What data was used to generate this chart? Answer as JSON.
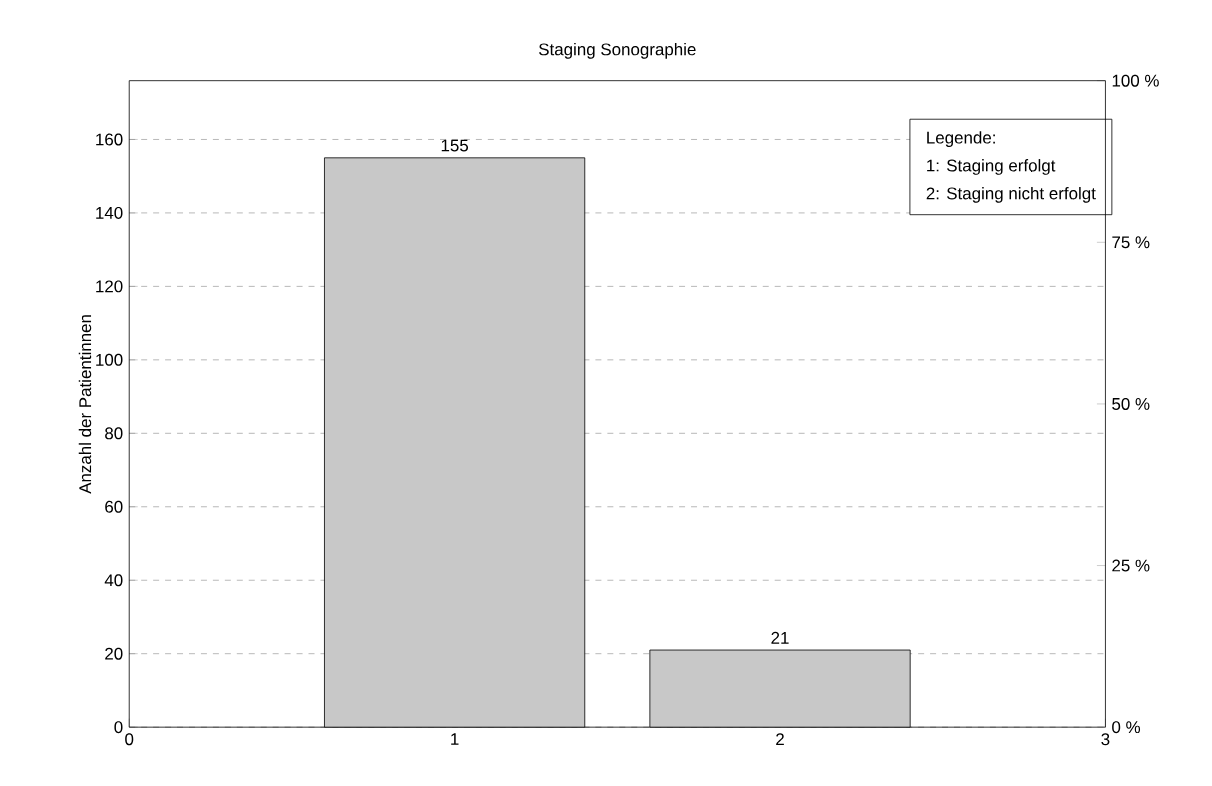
{
  "chart_data": {
    "type": "bar",
    "title": "Staging Sonographie",
    "ylabel": "Anzahl der Patientinnen",
    "x": [
      1,
      2
    ],
    "values": [
      155,
      21
    ],
    "color": "#c8c8c8",
    "data_labels": true,
    "xlim": [
      0,
      3
    ],
    "xticks": [
      0,
      1,
      2,
      3
    ],
    "ylim": [
      0,
      176
    ],
    "yticks": [
      0,
      20,
      40,
      60,
      80,
      100,
      120,
      140,
      160
    ],
    "y2lim": [
      0,
      100
    ],
    "y2ticks": [
      {
        "value": 0,
        "label": "0 %"
      },
      {
        "value": 25,
        "label": "25 %"
      },
      {
        "value": 50,
        "label": "50 %"
      },
      {
        "value": 75,
        "label": "75 %"
      },
      {
        "value": 100,
        "label": "100 %"
      }
    ],
    "grid": "y",
    "annotations": [
      "Legende:",
      "1: Staging  erfolgt",
      "2: Staging  nicht  erfolgt"
    ]
  }
}
